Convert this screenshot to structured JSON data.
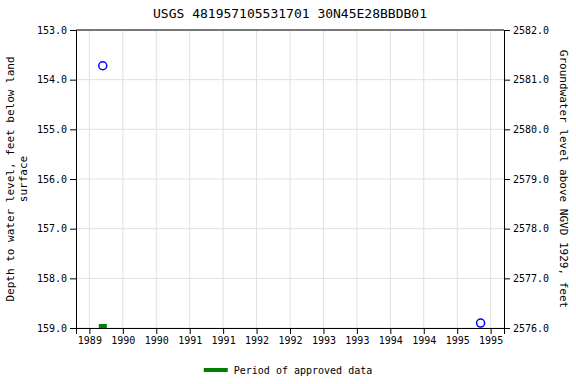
{
  "chart_data": {
    "type": "scatter",
    "title": "USGS 481957105531701 30N45E28BBDB01",
    "ylabel": "Depth to water level, feet below land\nsurface",
    "y2label": "Groundwater level above NGVD 1929, feet",
    "xlim": [
      1988.8,
      1995.2
    ],
    "xticks": [
      1989,
      {
        "value": 1989.5,
        "label": "1990"
      },
      1990,
      {
        "value": 1990.5,
        "label": "1991"
      },
      1991,
      {
        "value": 1991.5,
        "label": "1992"
      },
      1992,
      {
        "value": 1992.5,
        "label": "1993"
      },
      1993,
      {
        "value": 1993.5,
        "label": "1994"
      },
      1994,
      {
        "value": 1994.5,
        "label": "1995"
      },
      1995
    ],
    "ylim": [
      159.0,
      153.0
    ],
    "yticks": [
      {
        "value": 153.0,
        "label": "153.0"
      },
      {
        "value": 154.0,
        "label": "154.0"
      },
      {
        "value": 155.0,
        "label": "155.0"
      },
      {
        "value": 156.0,
        "label": "156.0"
      },
      {
        "value": 157.0,
        "label": "157.0"
      },
      {
        "value": 158.0,
        "label": "158.0"
      },
      {
        "value": 159.0,
        "label": "159.0"
      }
    ],
    "y2lim": [
      2576.0,
      2582.0
    ],
    "y2ticks": [
      {
        "value": 2582.0,
        "label": "2582.0"
      },
      {
        "value": 2581.0,
        "label": "2581.0"
      },
      {
        "value": 2580.0,
        "label": "2580.0"
      },
      {
        "value": 2579.0,
        "label": "2579.0"
      },
      {
        "value": 2578.0,
        "label": "2578.0"
      },
      {
        "value": 2577.0,
        "label": "2577.0"
      },
      {
        "value": 2576.0,
        "label": "2576.0"
      }
    ],
    "grid": true,
    "legend": "bottom",
    "series": [
      {
        "x": [
          1989.2,
          1994.85
        ],
        "values": [
          153.72,
          158.9
        ],
        "color": "#0000ff",
        "marker": "circle"
      },
      {
        "name": "Period of approved data",
        "x": [
          1989.2
        ],
        "values": [
          159.0
        ],
        "color": "#008000",
        "marker": "square"
      }
    ]
  }
}
